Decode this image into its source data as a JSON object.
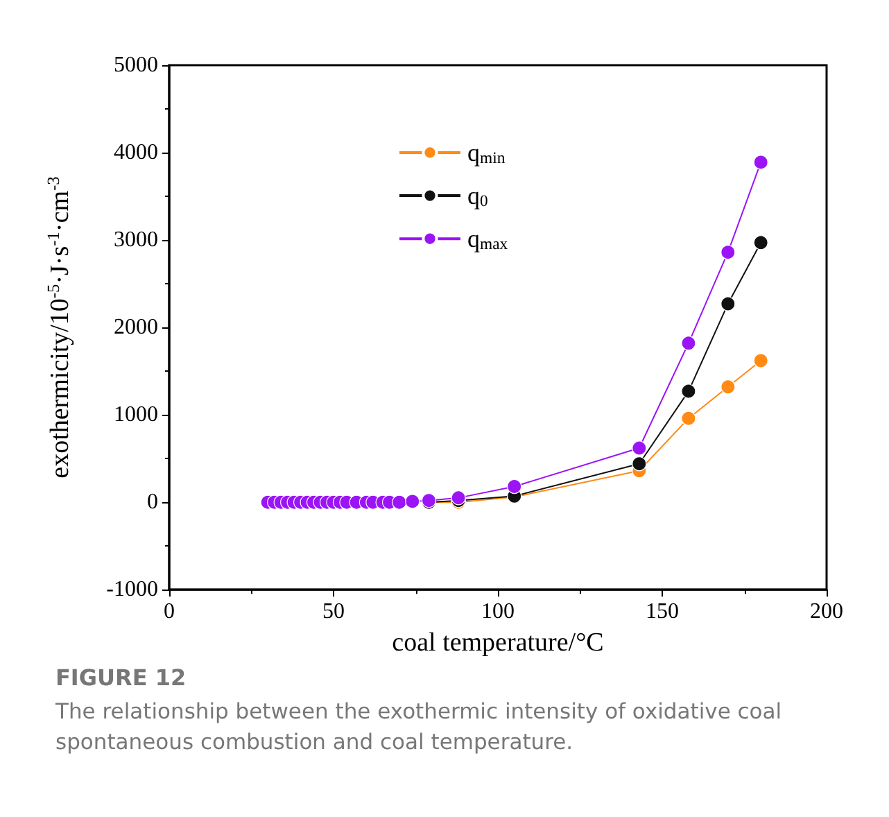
{
  "chart_data": {
    "type": "line",
    "xlabel": "coal temperature/°C",
    "ylabel": "exothermicity/10$^{-5}$·J·s$^{-1}$·cm$^{-3}$",
    "x": [
      30,
      32,
      34,
      36,
      38,
      40,
      42,
      44,
      46,
      48,
      50,
      52,
      54,
      57,
      60,
      62,
      65,
      67,
      70,
      74,
      79,
      88,
      105,
      143,
      158,
      170,
      180
    ],
    "series": [
      {
        "name": "q$_{min}$",
        "color": "#ff8a14",
        "values": [
          null,
          null,
          null,
          null,
          null,
          null,
          null,
          null,
          null,
          null,
          null,
          null,
          null,
          null,
          null,
          null,
          null,
          null,
          null,
          null,
          0,
          0,
          60,
          360,
          960,
          1320,
          1620
        ]
      },
      {
        "name": "q$_{0}$",
        "color": "#111111",
        "values": [
          null,
          null,
          null,
          null,
          null,
          null,
          null,
          null,
          null,
          null,
          null,
          null,
          null,
          null,
          null,
          null,
          null,
          null,
          null,
          null,
          0,
          20,
          70,
          440,
          1270,
          2270,
          2970
        ]
      },
      {
        "name": "q$_{max}$",
        "color": "#9b14f5",
        "values": [
          0,
          0,
          0,
          0,
          0,
          0,
          0,
          0,
          0,
          0,
          0,
          0,
          0,
          0,
          0,
          0,
          0,
          0,
          0,
          10,
          20,
          50,
          180,
          620,
          1820,
          2860,
          3890
        ]
      }
    ],
    "xlim": [
      0,
      200
    ],
    "xticks": [
      0,
      50,
      100,
      150,
      200
    ],
    "ylim": [
      -1000,
      5000
    ],
    "yticks": [
      -1000,
      0,
      1000,
      2000,
      3000,
      4000,
      5000
    ],
    "grid": false,
    "legend": "top left",
    "marker": "circle",
    "line_style": "solid",
    "annotations": [
      "FIGURE 12",
      "The relationship between the exothermic intensity of oxidative coal spontaneous combustion and coal temperature."
    ]
  }
}
